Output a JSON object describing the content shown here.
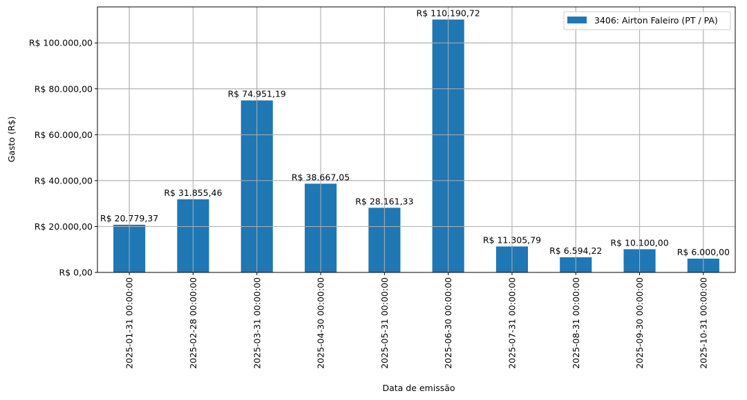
{
  "chart_data": {
    "type": "bar",
    "title": "",
    "xlabel": "Data de emissão",
    "ylabel": "Gasto (R$)",
    "ylim": [
      0,
      115700
    ],
    "grid": true,
    "legend_position": "upper right",
    "bar_color": "#1f77b4",
    "categories": [
      "2025-01-31 00:00:00",
      "2025-02-28 00:00:00",
      "2025-03-31 00:00:00",
      "2025-04-30 00:00:00",
      "2025-05-31 00:00:00",
      "2025-06-30 00:00:00",
      "2025-07-31 00:00:00",
      "2025-08-31 00:00:00",
      "2025-09-30 00:00:00",
      "2025-10-31 00:00:00"
    ],
    "series": [
      {
        "name": "3406: Airton Faleiro (PT / PA)",
        "values": [
          20779.37,
          31855.46,
          74951.19,
          38667.05,
          28161.33,
          110190.72,
          11305.79,
          6594.22,
          10100.0,
          6000.0
        ],
        "labels": [
          "R$ 20.779,37",
          "R$ 31.855,46",
          "R$ 74.951,19",
          "R$ 38.667,05",
          "R$ 28.161,33",
          "R$ 110.190,72",
          "R$ 11.305,79",
          "R$ 6.594,22",
          "R$ 10.100,00",
          "R$ 6.000,00"
        ]
      }
    ],
    "yticks": [
      0,
      20000,
      40000,
      60000,
      80000,
      100000
    ],
    "ytick_labels": [
      "R$ 0,00",
      "R$ 20.000,00",
      "R$ 40.000,00",
      "R$ 60.000,00",
      "R$ 80.000,00",
      "R$ 100.000,00"
    ]
  }
}
